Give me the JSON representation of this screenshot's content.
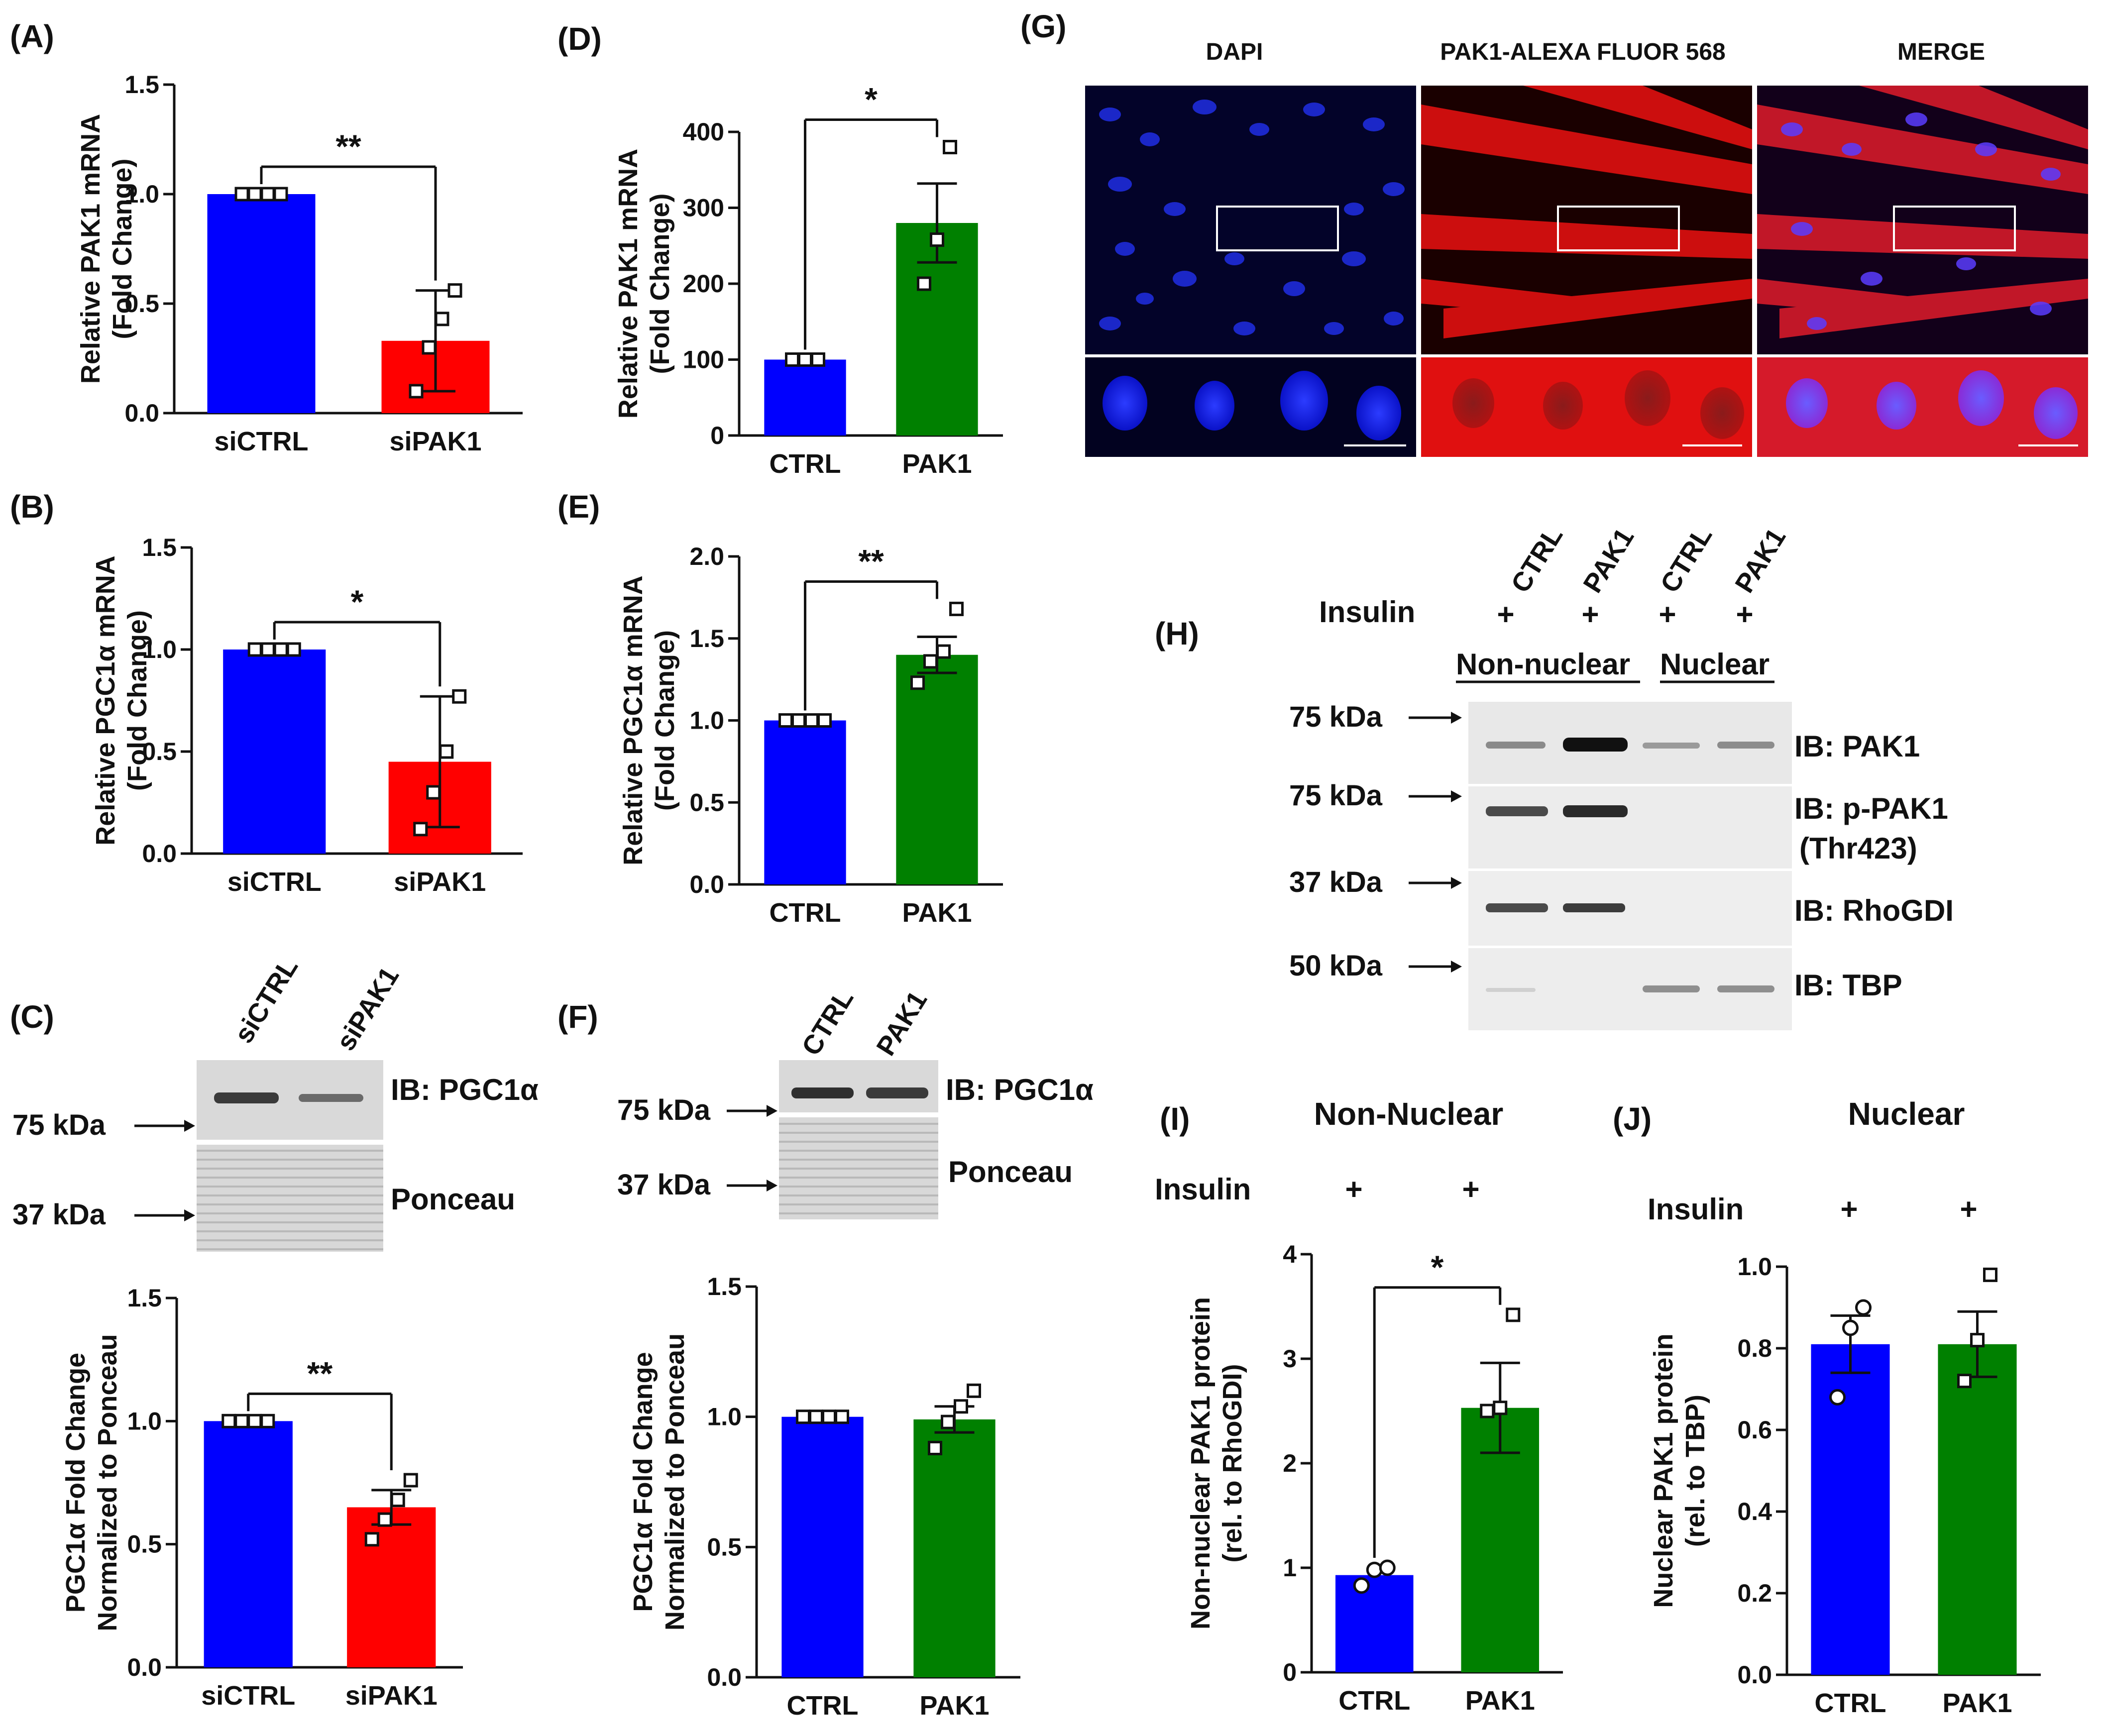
{
  "colors": {
    "blue": "#0000ff",
    "red": "#ff0000",
    "green": "#008000",
    "black": "#111111"
  },
  "chart_data": [
    {
      "id": "A",
      "type": "bar",
      "panel": "(A)",
      "ylabel_lines": [
        "Relative PAK1 mRNA",
        "(Fold Change)"
      ],
      "ylim": [
        0,
        1.5
      ],
      "yticks": [
        0.0,
        0.5,
        1.0,
        1.5
      ],
      "tick_decimals": 1,
      "categories": [
        "siCTRL",
        "siPAK1"
      ],
      "values": [
        1.0,
        0.33
      ],
      "errors": [
        0,
        0.23
      ],
      "colors": [
        "#0000ff",
        "#ff0000"
      ],
      "marker": "square",
      "points": [
        [
          1,
          1,
          1,
          1
        ],
        [
          0.1,
          0.3,
          0.43,
          0.56
        ]
      ],
      "sig": "**"
    },
    {
      "id": "B",
      "type": "bar",
      "panel": "(B)",
      "ylabel_lines": [
        "Relative PGC1α mRNA",
        "(Fold Change)"
      ],
      "ylim": [
        0,
        1.5
      ],
      "yticks": [
        0.0,
        0.5,
        1.0,
        1.5
      ],
      "tick_decimals": 1,
      "categories": [
        "siCTRL",
        "siPAK1"
      ],
      "values": [
        1.0,
        0.45
      ],
      "errors": [
        0,
        0.32
      ],
      "colors": [
        "#0000ff",
        "#ff0000"
      ],
      "marker": "square",
      "points": [
        [
          1,
          1,
          1,
          1
        ],
        [
          0.12,
          0.3,
          0.5,
          0.77
        ]
      ],
      "sig": "*"
    },
    {
      "id": "C",
      "type": "bar",
      "ylabel_lines": [
        "PGC1α Fold Change",
        "Normalized to Ponceau"
      ],
      "ylim": [
        0,
        1.5
      ],
      "yticks": [
        0.0,
        0.5,
        1.0,
        1.5
      ],
      "tick_decimals": 1,
      "categories": [
        "siCTRL",
        "siPAK1"
      ],
      "values": [
        1.0,
        0.65
      ],
      "errors": [
        0,
        0.07
      ],
      "colors": [
        "#0000ff",
        "#ff0000"
      ],
      "marker": "square",
      "points": [
        [
          1,
          1,
          1,
          1
        ],
        [
          0.52,
          0.6,
          0.68,
          0.76
        ]
      ],
      "sig": "**"
    },
    {
      "id": "D",
      "type": "bar",
      "panel": "(D)",
      "ylabel_lines": [
        "Relative PAK1 mRNA",
        "(Fold Change)"
      ],
      "ylim": [
        0,
        400
      ],
      "yticks": [
        0,
        100,
        200,
        300,
        400
      ],
      "tick_decimals": 0,
      "categories": [
        "CTRL",
        "PAK1"
      ],
      "values": [
        100,
        280
      ],
      "errors": [
        0,
        52
      ],
      "colors": [
        "#0000ff",
        "#008000"
      ],
      "marker": "square",
      "points": [
        [
          100,
          100,
          100
        ],
        [
          200,
          258,
          380
        ]
      ],
      "sig": "*"
    },
    {
      "id": "E",
      "type": "bar",
      "panel": "(E)",
      "ylabel_lines": [
        "Relative PGC1α mRNA",
        "(Fold Change)"
      ],
      "ylim": [
        0,
        2.0
      ],
      "yticks": [
        0.0,
        0.5,
        1.0,
        1.5,
        2.0
      ],
      "tick_decimals": 1,
      "categories": [
        "CTRL",
        "PAK1"
      ],
      "values": [
        1.0,
        1.4
      ],
      "errors": [
        0,
        0.11
      ],
      "colors": [
        "#0000ff",
        "#008000"
      ],
      "marker": "square",
      "points": [
        [
          1,
          1,
          1,
          1
        ],
        [
          1.23,
          1.36,
          1.42,
          1.68
        ]
      ],
      "sig": "**"
    },
    {
      "id": "F",
      "type": "bar",
      "ylabel_lines": [
        "PGC1α Fold Change",
        "Normalized to Ponceau"
      ],
      "ylim": [
        0,
        1.5
      ],
      "yticks": [
        0.0,
        0.5,
        1.0,
        1.5
      ],
      "tick_decimals": 1,
      "categories": [
        "CTRL",
        "PAK1"
      ],
      "values": [
        1.0,
        0.99
      ],
      "errors": [
        0,
        0.05
      ],
      "colors": [
        "#0000ff",
        "#008000"
      ],
      "marker": "square",
      "points": [
        [
          1,
          1,
          1,
          1
        ],
        [
          0.88,
          0.98,
          1.04,
          1.1
        ]
      ],
      "sig": ""
    },
    {
      "id": "I",
      "type": "bar",
      "panel": "(I)",
      "title": "Non-Nuclear",
      "insulin_label": "Insulin",
      "insulin_marks": [
        "+",
        "+"
      ],
      "ylabel_lines": [
        "Non-nuclear PAK1 protein",
        "(rel. to RhoGDI)"
      ],
      "ylim": [
        0,
        4
      ],
      "yticks": [
        0,
        1,
        2,
        3,
        4
      ],
      "tick_decimals": 0,
      "categories": [
        "CTRL",
        "PAK1"
      ],
      "values": [
        0.93,
        2.53
      ],
      "errors": [
        0,
        0.43
      ],
      "colors": [
        "#0000ff",
        "#008000"
      ],
      "marker": [
        "circle",
        "square"
      ],
      "points": [
        [
          0.83,
          0.98,
          1.0
        ],
        [
          2.5,
          2.53,
          3.42
        ]
      ],
      "sig": "*"
    },
    {
      "id": "J",
      "type": "bar",
      "panel": "(J)",
      "title": "Nuclear",
      "insulin_label": "Insulin",
      "insulin_marks": [
        "+",
        "+"
      ],
      "ylabel_lines": [
        "Nuclear PAK1 protein",
        "(rel. to TBP)"
      ],
      "ylim": [
        0,
        1.0
      ],
      "yticks": [
        0.0,
        0.2,
        0.4,
        0.6,
        0.8,
        1.0
      ],
      "tick_decimals": 1,
      "categories": [
        "CTRL",
        "PAK1"
      ],
      "values": [
        0.81,
        0.81
      ],
      "errors": [
        0.07,
        0.08
      ],
      "colors": [
        "#0000ff",
        "#008000"
      ],
      "marker": [
        "circle",
        "square"
      ],
      "points": [
        [
          0.68,
          0.85,
          0.9
        ],
        [
          0.72,
          0.82,
          0.98
        ]
      ],
      "sig": ""
    }
  ],
  "blot_C": {
    "panel": "(C)",
    "lanes": [
      "siCTRL",
      "siPAK1"
    ],
    "band_label": "IB: PGC1α",
    "ponceau_label": "Ponceau",
    "markers": [
      "75 kDa",
      "37 kDa"
    ]
  },
  "blot_F": {
    "panel": "(F)",
    "lanes": [
      "CTRL",
      "PAK1"
    ],
    "band_label": "IB: PGC1α",
    "ponceau_label": "Ponceau",
    "markers": [
      "75 kDa",
      "37 kDa"
    ]
  },
  "micro_G": {
    "panel": "(G)",
    "channels": [
      "DAPI",
      "PAK1-ALEXA FLUOR 568",
      "MERGE"
    ]
  },
  "blot_H": {
    "panel": "(H)",
    "lanes": [
      "CTRL",
      "PAK1",
      "CTRL",
      "PAK1"
    ],
    "insulin_label": "Insulin",
    "insulin_marks": [
      "+",
      "+",
      "+",
      "+"
    ],
    "groups": [
      "Non-nuclear",
      "Nuclear"
    ],
    "markers": [
      "75 kDa",
      "75 kDa",
      "37 kDa",
      "50 kDa"
    ],
    "blots": [
      "IB: PAK1",
      "IB: p-PAK1",
      "(Thr423)",
      "IB: RhoGDI",
      "IB: TBP"
    ]
  }
}
